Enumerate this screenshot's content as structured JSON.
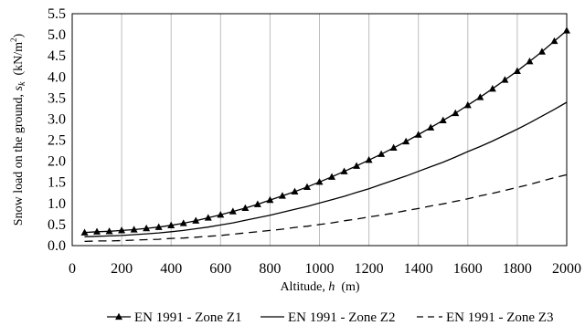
{
  "chart_data": {
    "type": "line",
    "xlabel": "Altitude, h  (m)",
    "xlabel_parts": {
      "prefix": "Altitude, ",
      "var": "h",
      "suffix": "  (m)"
    },
    "ylabel": "Snow load on the ground, sk (kN/m2)",
    "ylabel_parts": {
      "prefix": "Snow load on the ground, ",
      "var": "s",
      "sub": "k",
      "unit_open": "  (kN/m",
      "sup": "2",
      "unit_close": ")"
    },
    "xlim": [
      0,
      2000
    ],
    "ylim": [
      0,
      5.5
    ],
    "xticks": [
      0,
      200,
      400,
      600,
      800,
      1000,
      1200,
      1400,
      1600,
      1800,
      2000
    ],
    "yticks": [
      "0.0",
      "0.5",
      "1.0",
      "1.5",
      "2.0",
      "2.5",
      "3.0",
      "3.5",
      "4.0",
      "4.5",
      "5.0",
      "5.5"
    ],
    "grid": "vertical",
    "legend_position": "bottom",
    "x": [
      50,
      100,
      150,
      200,
      250,
      300,
      350,
      400,
      450,
      500,
      550,
      600,
      650,
      700,
      750,
      800,
      850,
      900,
      950,
      1000,
      1050,
      1100,
      1150,
      1200,
      1250,
      1300,
      1350,
      1400,
      1450,
      1500,
      1550,
      1600,
      1650,
      1700,
      1750,
      1800,
      1850,
      1900,
      1950,
      2000
    ],
    "series": [
      {
        "name": "EN 1991 - Zone Z1",
        "style": "solid-triangle",
        "color": "#000000",
        "values": [
          0.31,
          0.33,
          0.34,
          0.36,
          0.38,
          0.41,
          0.44,
          0.48,
          0.53,
          0.59,
          0.66,
          0.73,
          0.81,
          0.89,
          0.98,
          1.08,
          1.18,
          1.28,
          1.39,
          1.51,
          1.63,
          1.76,
          1.89,
          2.03,
          2.17,
          2.32,
          2.47,
          2.63,
          2.8,
          2.97,
          3.14,
          3.33,
          3.52,
          3.72,
          3.93,
          4.14,
          4.37,
          4.6,
          4.85,
          5.1
        ]
      },
      {
        "name": "EN 1991 - Zone Z2",
        "style": "solid",
        "color": "#000000",
        "values": [
          0.21,
          0.22,
          0.23,
          0.24,
          0.26,
          0.28,
          0.3,
          0.33,
          0.36,
          0.4,
          0.44,
          0.49,
          0.54,
          0.6,
          0.66,
          0.72,
          0.79,
          0.86,
          0.93,
          1.01,
          1.09,
          1.17,
          1.26,
          1.35,
          1.45,
          1.55,
          1.65,
          1.76,
          1.87,
          1.98,
          2.1,
          2.23,
          2.35,
          2.48,
          2.62,
          2.76,
          2.91,
          3.07,
          3.23,
          3.4
        ]
      },
      {
        "name": "EN 1991 - Zone Z3",
        "style": "dashed",
        "color": "#000000",
        "values": [
          0.1,
          0.11,
          0.11,
          0.12,
          0.13,
          0.14,
          0.15,
          0.17,
          0.18,
          0.2,
          0.22,
          0.24,
          0.27,
          0.3,
          0.33,
          0.36,
          0.39,
          0.43,
          0.46,
          0.5,
          0.54,
          0.59,
          0.63,
          0.68,
          0.72,
          0.77,
          0.83,
          0.88,
          0.94,
          0.99,
          1.05,
          1.11,
          1.18,
          1.24,
          1.31,
          1.38,
          1.45,
          1.53,
          1.61,
          1.68
        ]
      }
    ]
  }
}
